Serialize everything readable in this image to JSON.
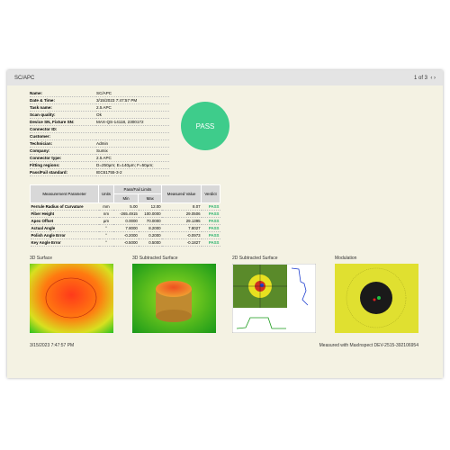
{
  "header": {
    "title": "SC/APC",
    "pager": "1 of 3"
  },
  "info": [
    {
      "label": "Name:",
      "value": "SC/APC"
    },
    {
      "label": "Date & Time:",
      "value": "3/15/2023 7:47:57 PM"
    },
    {
      "label": "Task name:",
      "value": "2.5 APC"
    },
    {
      "label": "Scan quality:",
      "value": "Ok"
    },
    {
      "label": "Device SN, Fixture SN:",
      "value": "MAX-QS-14118, 2300172"
    },
    {
      "label": "Connector ID:"
    },
    {
      "label": "Customer:"
    },
    {
      "label": "Technician:",
      "value": "Admin"
    },
    {
      "label": "Company:",
      "value": "Sumix"
    },
    {
      "label": "Connector type:",
      "value": "2.5 APC"
    },
    {
      "label": "Fitting regions:",
      "value": "D=250µm; E=140µm; F=50µm;"
    },
    {
      "label": "Pass/Fail standard:",
      "value": "IEC61755-3-2"
    }
  ],
  "verdict": "PASS",
  "table": {
    "headers": [
      "Measurement Parameter",
      "Units",
      "Pass/Fail Limits",
      "Measured Value",
      "Verdict"
    ],
    "subheaders": [
      "Min",
      "Max"
    ],
    "rows": [
      [
        "Ferrule Radius of Curvature",
        "mm",
        "5.00",
        "12.00",
        "8.07",
        "PASS"
      ],
      [
        "Fiber Height",
        "nm",
        "-265.4915",
        "100.0000",
        "29.0506",
        "PASS"
      ],
      [
        "Apex Offset",
        "µm",
        "0.0000",
        "70.0000",
        "29.1395",
        "PASS"
      ],
      [
        "Actual Angle",
        "°",
        "7.8000",
        "8.2000",
        "7.8027",
        "PASS"
      ],
      [
        "Polish Angle Error",
        "°",
        "-0.2000",
        "0.2000",
        "-0.0973",
        "PASS"
      ],
      [
        "Key Angle Error",
        "°",
        "-0.5000",
        "0.5000",
        "-0.1827",
        "PASS"
      ]
    ]
  },
  "images": [
    "3D Surface",
    "3D Subtracted Surface",
    "2D Subtracted Surface",
    "Modulation"
  ],
  "footer": {
    "date": "3/15/2023 7:47:57 PM",
    "note": "Measured with MaxInspect DEV-2515-392106954"
  }
}
